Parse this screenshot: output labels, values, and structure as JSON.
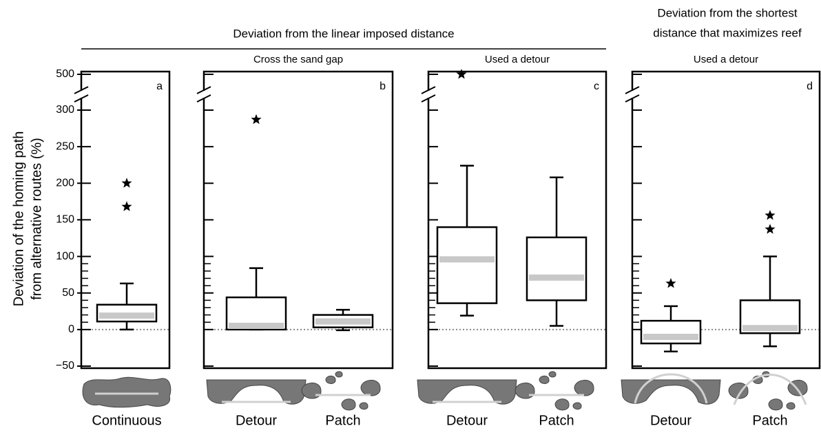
{
  "chart_data": {
    "type": "box",
    "header": "Deviation from the linear imposed distance",
    "header_right": [
      "Deviation from the shortest",
      "distance that maximizes reef"
    ],
    "ylabel": [
      "Deviation of the homing path",
      "from alternative routes (%)"
    ],
    "ylim": [
      -50,
      300
    ],
    "axis_break": [
      300,
      500
    ],
    "yticks": [
      {
        "value": -50,
        "label": "−50"
      },
      0,
      50,
      100,
      150,
      200,
      250,
      300,
      500
    ],
    "minor_yticks": [
      10,
      20,
      30,
      40,
      60,
      70,
      80,
      90
    ],
    "reference_line": 0,
    "box_color": "#000000",
    "median_color": "#c8c8c8",
    "panels": [
      {
        "letter": "a",
        "categories": [
          "Continuous"
        ],
        "boxes": [
          {
            "whislo": 0,
            "q1": 11,
            "med": 19,
            "q3": 34,
            "whishi": 63,
            "fliers": [
              200,
              168
            ]
          }
        ]
      },
      {
        "letter": "b",
        "subtitle": "Cross the sand gap",
        "categories": [
          "Detour",
          "Patch"
        ],
        "boxes": [
          {
            "whislo": 0,
            "q1": 0,
            "med": 5,
            "q3": 44,
            "whishi": 84,
            "fliers": [
              287
            ]
          },
          {
            "whislo": -1,
            "q1": 3,
            "med": 11,
            "q3": 20,
            "whishi": 27,
            "fliers": []
          }
        ]
      },
      {
        "letter": "c",
        "subtitle": "Used a detour",
        "categories": [
          "Detour",
          "Patch"
        ],
        "boxes": [
          {
            "whislo": 19,
            "q1": 36,
            "med": 96,
            "q3": 140,
            "whishi": 224,
            "fliers": [
              500
            ]
          },
          {
            "whislo": 5,
            "q1": 40,
            "med": 71,
            "q3": 126,
            "whishi": 208,
            "fliers": []
          }
        ]
      },
      {
        "letter": "d",
        "subtitle": "Used a detour",
        "categories": [
          "Detour",
          "Patch"
        ],
        "boxes": [
          {
            "whislo": -30,
            "q1": -19,
            "med": -10,
            "q3": 12,
            "whishi": 32,
            "fliers": [
              63
            ]
          },
          {
            "whislo": -23,
            "q1": -5,
            "med": 2,
            "q3": 40,
            "whishi": 100,
            "fliers": [
              156,
              137
            ]
          }
        ]
      }
    ]
  }
}
